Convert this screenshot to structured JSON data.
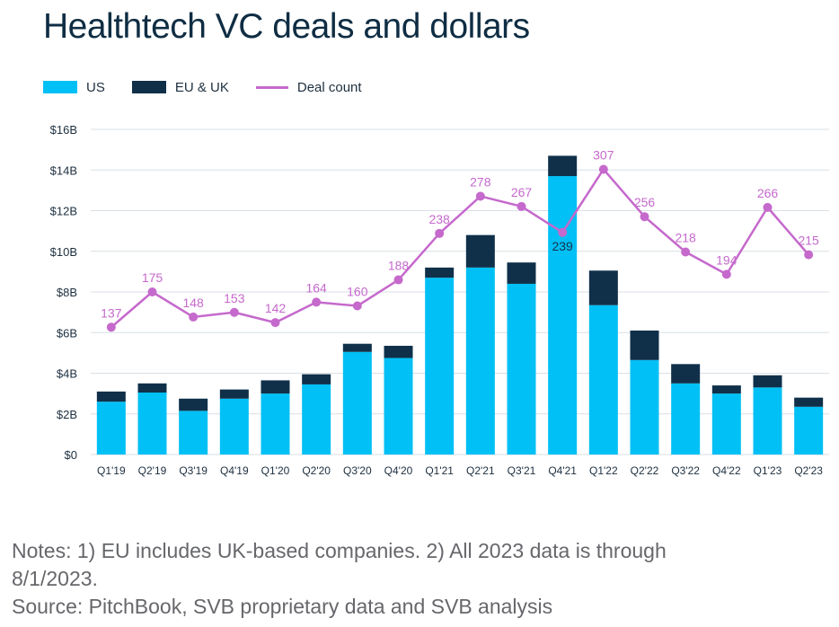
{
  "title": "Healthtech VC deals and dollars",
  "legend": {
    "us": "US",
    "eu": "EU & UK",
    "deal": "Deal count"
  },
  "colors": {
    "us": "#00c0f5",
    "eu": "#10304a",
    "deal": "#c569cc",
    "grid": "#d8dfe6",
    "text": "#1d2f3f"
  },
  "notes": {
    "line1": "Notes: 1) EU includes UK-based companies. 2) All 2023 data is through",
    "line2": "8/1/2023.",
    "line3": "Source: PitchBook, SVB proprietary data and SVB analysis"
  },
  "chart_data": {
    "type": "bar",
    "stacked": true,
    "categories": [
      "Q1'19",
      "Q2'19",
      "Q3'19",
      "Q4'19",
      "Q1'20",
      "Q2'20",
      "Q3'20",
      "Q4'20",
      "Q1'21",
      "Q2'21",
      "Q3'21",
      "Q4'21",
      "Q1'22",
      "Q2'22",
      "Q3'22",
      "Q4'22",
      "Q1'23",
      "Q2'23"
    ],
    "y_ticks": [
      "$0",
      "$2B",
      "$4B",
      "$6B",
      "$8B",
      "$10B",
      "$12B",
      "$14B",
      "$16B"
    ],
    "ylim": [
      0,
      16
    ],
    "series": [
      {
        "name": "US",
        "values": [
          2.6,
          3.05,
          2.15,
          2.75,
          3.0,
          3.45,
          5.05,
          4.75,
          8.7,
          9.2,
          8.4,
          13.7,
          7.35,
          4.65,
          3.5,
          3.0,
          3.3,
          2.35
        ]
      },
      {
        "name": "EU & UK",
        "values": [
          0.5,
          0.45,
          0.6,
          0.45,
          0.65,
          0.5,
          0.4,
          0.6,
          0.5,
          1.6,
          1.05,
          1.0,
          1.7,
          1.45,
          0.95,
          0.4,
          0.6,
          0.45
        ]
      }
    ],
    "deal_count": {
      "name": "Deal count",
      "values": [
        137,
        175,
        148,
        153,
        142,
        164,
        160,
        188,
        238,
        278,
        267,
        239,
        307,
        256,
        218,
        194,
        266,
        215
      ],
      "labels": [
        "137",
        "175",
        "148",
        "153",
        "142",
        "164",
        "160",
        "188",
        "238",
        "278",
        "267",
        "239",
        "307",
        "256",
        "218",
        "194",
        "266",
        "215"
      ],
      "axis_range_hidden": [
        0,
        350
      ]
    },
    "grid": true,
    "legend_position": "top-left"
  }
}
